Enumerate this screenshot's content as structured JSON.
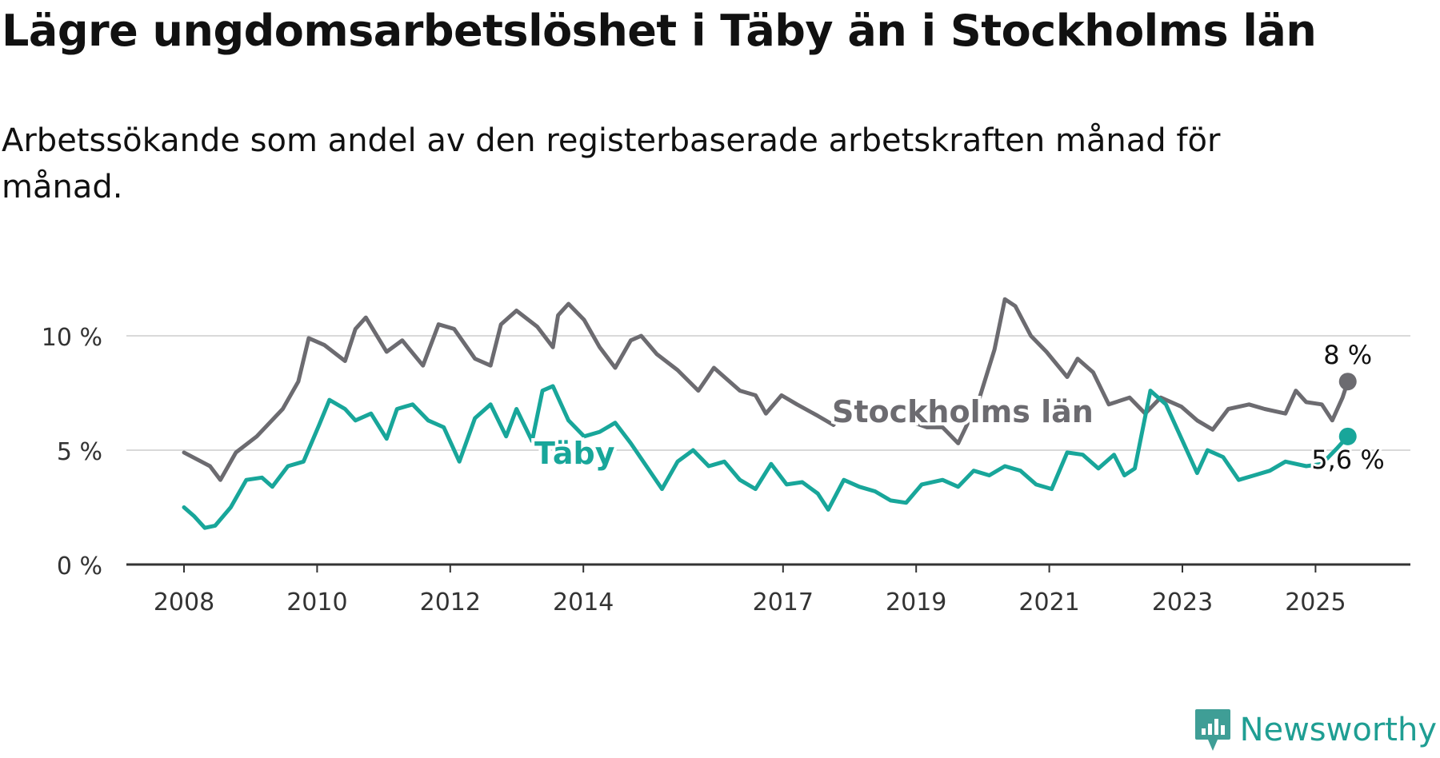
{
  "title": "Lägre ungdomsarbetslöshet i Täby än i Stockholms län",
  "subtitle": "Arbetssökande som andel av den registerbaserade arbetskraften månad för månad.",
  "logo": {
    "text": "Newsworthy",
    "icon": "newsworthy-chart-bubble-icon",
    "color": "#3f9e96"
  },
  "chart_data": {
    "type": "line",
    "x_ticks": [
      "2008",
      "2010",
      "2012",
      "2014",
      "2017",
      "2019",
      "2021",
      "2023",
      "2025"
    ],
    "y_ticks": [
      "0 %",
      "5 %",
      "10 %"
    ],
    "ylim": [
      0,
      12.5
    ],
    "x_range": [
      "2008-01",
      "2025-08"
    ],
    "grid": true,
    "series": [
      {
        "name": "Stockholms län",
        "color": "#6c6b70",
        "end_label": "8 %",
        "anchors": [
          [
            "2008-01",
            4.9
          ],
          [
            "2008-06",
            4.3
          ],
          [
            "2008-08",
            3.7
          ],
          [
            "2008-11",
            4.9
          ],
          [
            "2009-03",
            5.6
          ],
          [
            "2009-08",
            6.8
          ],
          [
            "2009-11",
            8.0
          ],
          [
            "2010-01",
            9.9
          ],
          [
            "2010-04",
            9.6
          ],
          [
            "2010-08",
            8.9
          ],
          [
            "2010-10",
            10.3
          ],
          [
            "2010-12",
            10.8
          ],
          [
            "2011-04",
            9.3
          ],
          [
            "2011-07",
            9.8
          ],
          [
            "2011-11",
            8.7
          ],
          [
            "2012-02",
            10.5
          ],
          [
            "2012-05",
            10.3
          ],
          [
            "2012-09",
            9.0
          ],
          [
            "2012-12",
            8.7
          ],
          [
            "2013-02",
            10.5
          ],
          [
            "2013-05",
            11.1
          ],
          [
            "2013-09",
            10.4
          ],
          [
            "2013-12",
            9.5
          ],
          [
            "2014-01",
            10.9
          ],
          [
            "2014-03",
            11.4
          ],
          [
            "2014-06",
            10.7
          ],
          [
            "2014-09",
            9.5
          ],
          [
            "2014-12",
            8.6
          ],
          [
            "2015-03",
            9.8
          ],
          [
            "2015-05",
            10.0
          ],
          [
            "2015-08",
            9.2
          ],
          [
            "2015-12",
            8.5
          ],
          [
            "2016-04",
            7.6
          ],
          [
            "2016-07",
            8.6
          ],
          [
            "2016-12",
            7.6
          ],
          [
            "2017-03",
            7.4
          ],
          [
            "2017-05",
            6.6
          ],
          [
            "2017-08",
            7.4
          ],
          [
            "2017-11",
            7.0
          ],
          [
            "2018-03",
            6.5
          ],
          [
            "2018-06",
            6.1
          ],
          [
            "2018-09",
            7.0
          ],
          [
            "2019-03",
            6.9
          ],
          [
            "2019-07",
            6.4
          ],
          [
            "2019-12",
            6.0
          ],
          [
            "2020-03",
            6.0
          ],
          [
            "2020-06",
            5.3
          ],
          [
            "2020-10",
            7.2
          ],
          [
            "2021-01",
            9.4
          ],
          [
            "2021-03",
            11.6
          ],
          [
            "2021-05",
            11.3
          ],
          [
            "2021-08",
            10.0
          ],
          [
            "2021-11",
            9.3
          ],
          [
            "2022-03",
            8.2
          ],
          [
            "2022-05",
            9.0
          ],
          [
            "2022-08",
            8.4
          ],
          [
            "2022-11",
            7.0
          ],
          [
            "2023-03",
            7.3
          ],
          [
            "2023-06",
            6.6
          ],
          [
            "2023-09",
            7.3
          ],
          [
            "2024-01",
            6.9
          ],
          [
            "2024-04",
            6.3
          ],
          [
            "2024-07",
            5.9
          ],
          [
            "2024-10",
            6.8
          ],
          [
            "2025-02",
            7.0
          ],
          [
            "2025-05",
            6.8
          ],
          [
            "2025-09",
            6.6
          ],
          [
            "2025-11",
            7.6
          ],
          [
            "2026-01",
            7.1
          ],
          [
            "2026-04",
            7.0
          ],
          [
            "2026-06",
            6.3
          ],
          [
            "2026-08",
            7.3
          ],
          [
            "2026-09",
            8.0
          ]
        ]
      },
      {
        "name": "Täby",
        "color": "#18a69a",
        "end_label": "5,6 %",
        "anchors": [
          [
            "2008-01",
            2.5
          ],
          [
            "2008-03",
            2.1
          ],
          [
            "2008-05",
            1.6
          ],
          [
            "2008-07",
            1.7
          ],
          [
            "2008-10",
            2.5
          ],
          [
            "2009-01",
            3.7
          ],
          [
            "2009-04",
            3.8
          ],
          [
            "2009-06",
            3.4
          ],
          [
            "2009-09",
            4.3
          ],
          [
            "2009-12",
            4.5
          ],
          [
            "2010-03",
            6.1
          ],
          [
            "2010-05",
            7.2
          ],
          [
            "2010-08",
            6.8
          ],
          [
            "2010-10",
            6.3
          ],
          [
            "2011-01",
            6.6
          ],
          [
            "2011-04",
            5.5
          ],
          [
            "2011-06",
            6.8
          ],
          [
            "2011-09",
            7.0
          ],
          [
            "2011-12",
            6.3
          ],
          [
            "2012-03",
            6.0
          ],
          [
            "2012-06",
            4.5
          ],
          [
            "2012-09",
            6.4
          ],
          [
            "2012-12",
            7.0
          ],
          [
            "2013-03",
            5.6
          ],
          [
            "2013-05",
            6.8
          ],
          [
            "2013-08",
            5.4
          ],
          [
            "2013-10",
            7.6
          ],
          [
            "2013-12",
            7.8
          ],
          [
            "2014-03",
            6.3
          ],
          [
            "2014-06",
            5.6
          ],
          [
            "2014-09",
            5.8
          ],
          [
            "2014-12",
            6.2
          ],
          [
            "2015-03",
            5.3
          ],
          [
            "2015-06",
            4.3
          ],
          [
            "2015-09",
            3.3
          ],
          [
            "2015-12",
            4.5
          ],
          [
            "2016-03",
            5.0
          ],
          [
            "2016-06",
            4.3
          ],
          [
            "2016-09",
            4.5
          ],
          [
            "2016-12",
            3.7
          ],
          [
            "2017-03",
            3.3
          ],
          [
            "2017-06",
            4.4
          ],
          [
            "2017-09",
            3.5
          ],
          [
            "2017-12",
            3.6
          ],
          [
            "2018-03",
            3.1
          ],
          [
            "2018-05",
            2.4
          ],
          [
            "2018-08",
            3.7
          ],
          [
            "2018-11",
            3.4
          ],
          [
            "2019-02",
            3.2
          ],
          [
            "2019-05",
            2.8
          ],
          [
            "2019-08",
            2.7
          ],
          [
            "2019-11",
            3.5
          ],
          [
            "2020-03",
            3.7
          ],
          [
            "2020-06",
            3.4
          ],
          [
            "2020-09",
            4.1
          ],
          [
            "2020-12",
            3.9
          ],
          [
            "2021-03",
            4.3
          ],
          [
            "2021-06",
            4.1
          ],
          [
            "2021-09",
            3.5
          ],
          [
            "2021-12",
            3.3
          ],
          [
            "2022-03",
            4.9
          ],
          [
            "2022-06",
            4.8
          ],
          [
            "2022-09",
            4.2
          ],
          [
            "2022-12",
            4.8
          ],
          [
            "2023-02",
            3.9
          ],
          [
            "2023-04",
            4.2
          ],
          [
            "2023-07",
            7.6
          ],
          [
            "2023-10",
            7.0
          ],
          [
            "2024-01",
            5.5
          ],
          [
            "2024-04",
            4.0
          ],
          [
            "2024-06",
            5.0
          ],
          [
            "2024-09",
            4.7
          ],
          [
            "2024-12",
            3.7
          ],
          [
            "2025-03",
            3.9
          ],
          [
            "2025-06",
            4.1
          ],
          [
            "2025-09",
            4.5
          ],
          [
            "2026-01",
            4.3
          ],
          [
            "2026-04",
            4.4
          ],
          [
            "2026-07",
            5.1
          ],
          [
            "2026-09",
            5.6
          ]
        ]
      }
    ]
  }
}
